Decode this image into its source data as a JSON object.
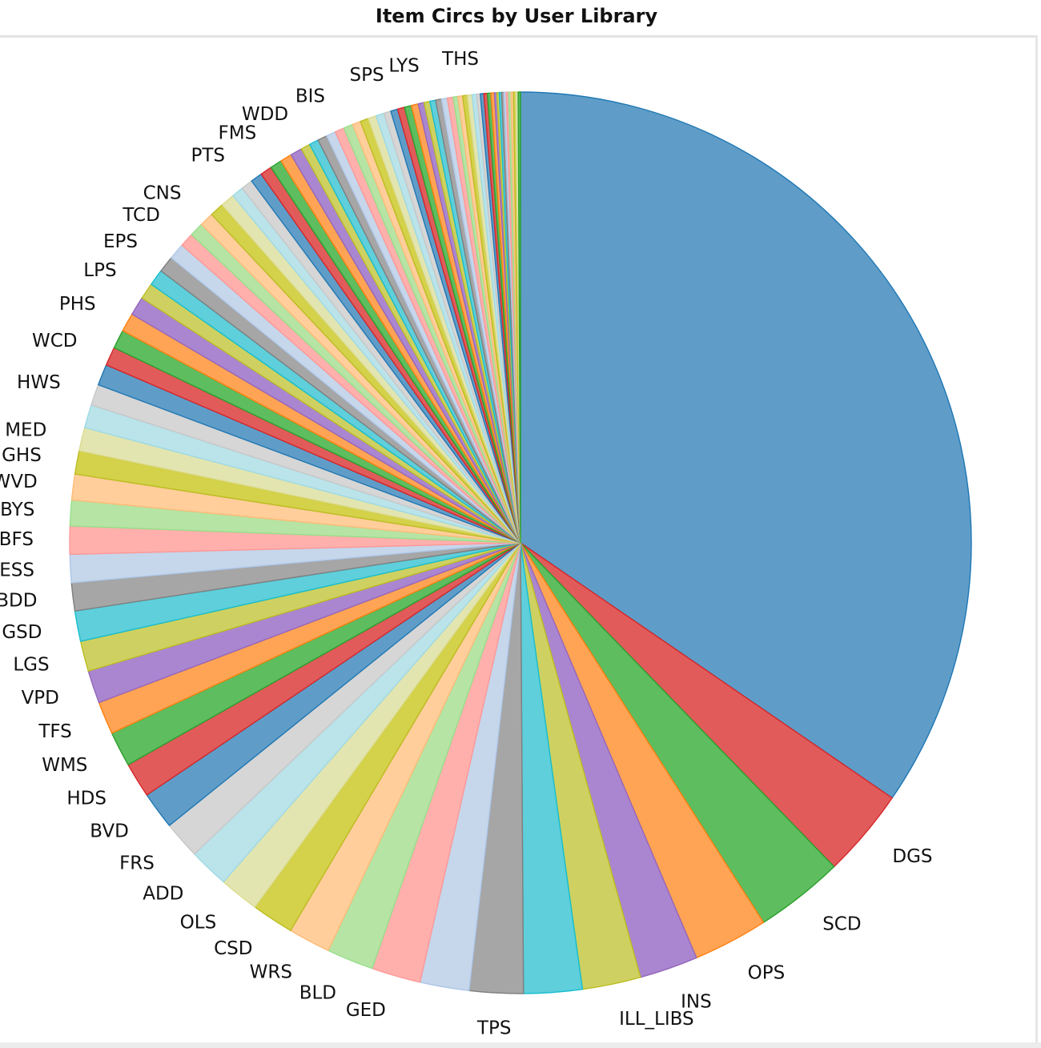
{
  "chart_data": {
    "type": "pie",
    "title": "Item Circs by User Library",
    "start_angle_deg": 90,
    "direction": "clockwise",
    "slices": [
      {
        "label": "",
        "value": 41.3,
        "color": "#5f9dc8",
        "edge": "#1f77b4"
      },
      {
        "label": "DGS",
        "value": 3.8,
        "color": "#e15b5b",
        "edge": "#d62728"
      },
      {
        "label": "SCD",
        "value": 3.8,
        "color": "#5dbd5f",
        "edge": "#2ca02c"
      },
      {
        "label": "OPS",
        "value": 3.2,
        "color": "#ffa454",
        "edge": "#ff7f0e"
      },
      {
        "label": "INS",
        "value": 2.5,
        "color": "#ab86d0",
        "edge": "#9467bd"
      },
      {
        "label": "ILL_LIBS",
        "value": 2.5,
        "color": "#ced161",
        "edge": "#bcbd22"
      },
      {
        "label": "",
        "value": 2.5,
        "color": "#5ecfdb",
        "edge": "#17becf"
      },
      {
        "label": "TPS",
        "value": 2.3,
        "color": "#a6a6a6",
        "edge": "#7f7f7f"
      },
      {
        "label": "",
        "value": 2.1,
        "color": "#c6d6eb",
        "edge": "#aec7e8"
      },
      {
        "label": "GED",
        "value": 2.1,
        "color": "#ffb0ad",
        "edge": "#ff9896"
      },
      {
        "label": "BLD",
        "value": 2.0,
        "color": "#b6e4a5",
        "edge": "#98df8a"
      },
      {
        "label": "WRS",
        "value": 1.8,
        "color": "#ffce9b",
        "edge": "#ffbb78"
      },
      {
        "label": "CSD",
        "value": 1.8,
        "color": "#d4d14a",
        "edge": "#bcbd22"
      },
      {
        "label": "OLS",
        "value": 1.7,
        "color": "#e3e5b0",
        "edge": "#dbdb8d"
      },
      {
        "label": "ADD",
        "value": 1.7,
        "color": "#bae3ea",
        "edge": "#9edae5"
      },
      {
        "label": "FRS",
        "value": 1.6,
        "color": "#d6d6d6",
        "edge": "#c7c7c7"
      },
      {
        "label": "BVD",
        "value": 1.6,
        "color": "#5f9dc8",
        "edge": "#1f77b4"
      },
      {
        "label": "HDS",
        "value": 1.5,
        "color": "#e15b5b",
        "edge": "#d62728"
      },
      {
        "label": "WMS",
        "value": 1.5,
        "color": "#5dbd5f",
        "edge": "#2ca02c"
      },
      {
        "label": "TFS",
        "value": 1.4,
        "color": "#ffa454",
        "edge": "#ff7f0e"
      },
      {
        "label": "VPD",
        "value": 1.4,
        "color": "#ab86d0",
        "edge": "#9467bd"
      },
      {
        "label": "LGS",
        "value": 1.3,
        "color": "#ced161",
        "edge": "#bcbd22"
      },
      {
        "label": "GSD",
        "value": 1.3,
        "color": "#5ecfdb",
        "edge": "#17becf"
      },
      {
        "label": "BDD",
        "value": 1.2,
        "color": "#a6a6a6",
        "edge": "#7f7f7f"
      },
      {
        "label": "ESS",
        "value": 1.2,
        "color": "#c6d6eb",
        "edge": "#aec7e8"
      },
      {
        "label": "BFS",
        "value": 1.2,
        "color": "#ffb0ad",
        "edge": "#ff9896"
      },
      {
        "label": "BYS",
        "value": 1.1,
        "color": "#b6e4a5",
        "edge": "#98df8a"
      },
      {
        "label": "WVD",
        "value": 1.1,
        "color": "#ffce9b",
        "edge": "#ffbb78"
      },
      {
        "label": "GHS",
        "value": 1.0,
        "color": "#d4d14a",
        "edge": "#bcbd22"
      },
      {
        "label": "MED",
        "value": 1.0,
        "color": "#e3e5b0",
        "edge": "#dbdb8d"
      },
      {
        "label": "",
        "value": 1.0,
        "color": "#bae3ea",
        "edge": "#9edae5"
      },
      {
        "label": "HWS",
        "value": 0.9,
        "color": "#d6d6d6",
        "edge": "#c7c7c7"
      },
      {
        "label": "",
        "value": 0.9,
        "color": "#5f9dc8",
        "edge": "#1f77b4"
      },
      {
        "label": "WCD",
        "value": 0.8,
        "color": "#e15b5b",
        "edge": "#d62728"
      },
      {
        "label": "",
        "value": 0.8,
        "color": "#5dbd5f",
        "edge": "#2ca02c"
      },
      {
        "label": "PHS",
        "value": 0.8,
        "color": "#ffa454",
        "edge": "#ff7f0e"
      },
      {
        "label": "",
        "value": 0.8,
        "color": "#ab86d0",
        "edge": "#9467bd"
      },
      {
        "label": "LPS",
        "value": 0.7,
        "color": "#ced161",
        "edge": "#bcbd22"
      },
      {
        "label": "",
        "value": 0.7,
        "color": "#5ecfdb",
        "edge": "#17becf"
      },
      {
        "label": "EPS",
        "value": 0.7,
        "color": "#a6a6a6",
        "edge": "#7f7f7f"
      },
      {
        "label": "",
        "value": 0.7,
        "color": "#c6d6eb",
        "edge": "#aec7e8"
      },
      {
        "label": "TCD",
        "value": 0.6,
        "color": "#ffb0ad",
        "edge": "#ff9896"
      },
      {
        "label": "",
        "value": 0.6,
        "color": "#b6e4a5",
        "edge": "#98df8a"
      },
      {
        "label": "CNS",
        "value": 0.6,
        "color": "#ffce9b",
        "edge": "#ffbb78"
      },
      {
        "label": "",
        "value": 0.6,
        "color": "#d4d14a",
        "edge": "#bcbd22"
      },
      {
        "label": "",
        "value": 0.6,
        "color": "#e3e5b0",
        "edge": "#dbdb8d"
      },
      {
        "label": "",
        "value": 0.5,
        "color": "#bae3ea",
        "edge": "#9edae5"
      },
      {
        "label": "PTS",
        "value": 0.5,
        "color": "#d6d6d6",
        "edge": "#c7c7c7"
      },
      {
        "label": "",
        "value": 0.5,
        "color": "#5f9dc8",
        "edge": "#1f77b4"
      },
      {
        "label": "",
        "value": 0.5,
        "color": "#e15b5b",
        "edge": "#d62728"
      },
      {
        "label": "FMS",
        "value": 0.5,
        "color": "#5dbd5f",
        "edge": "#2ca02c"
      },
      {
        "label": "",
        "value": 0.5,
        "color": "#ffa454",
        "edge": "#ff7f0e"
      },
      {
        "label": "",
        "value": 0.5,
        "color": "#ab86d0",
        "edge": "#9467bd"
      },
      {
        "label": "WDD",
        "value": 0.4,
        "color": "#ced161",
        "edge": "#bcbd22"
      },
      {
        "label": "",
        "value": 0.4,
        "color": "#5ecfdb",
        "edge": "#17becf"
      },
      {
        "label": "",
        "value": 0.4,
        "color": "#a6a6a6",
        "edge": "#7f7f7f"
      },
      {
        "label": "",
        "value": 0.4,
        "color": "#c6d6eb",
        "edge": "#aec7e8"
      },
      {
        "label": "BIS",
        "value": 0.4,
        "color": "#ffb0ad",
        "edge": "#ff9896"
      },
      {
        "label": "",
        "value": 0.4,
        "color": "#b6e4a5",
        "edge": "#98df8a"
      },
      {
        "label": "",
        "value": 0.35,
        "color": "#ffce9b",
        "edge": "#ffbb78"
      },
      {
        "label": "",
        "value": 0.35,
        "color": "#d4d14a",
        "edge": "#bcbd22"
      },
      {
        "label": "",
        "value": 0.35,
        "color": "#e3e5b0",
        "edge": "#dbdb8d"
      },
      {
        "label": "",
        "value": 0.35,
        "color": "#bae3ea",
        "edge": "#9edae5"
      },
      {
        "label": "",
        "value": 0.3,
        "color": "#d6d6d6",
        "edge": "#c7c7c7"
      },
      {
        "label": "SPS",
        "value": 0.3,
        "color": "#5f9dc8",
        "edge": "#1f77b4"
      },
      {
        "label": "",
        "value": 0.3,
        "color": "#e15b5b",
        "edge": "#d62728"
      },
      {
        "label": "",
        "value": 0.3,
        "color": "#5dbd5f",
        "edge": "#2ca02c"
      },
      {
        "label": "",
        "value": 0.3,
        "color": "#ffa454",
        "edge": "#ff7f0e"
      },
      {
        "label": "",
        "value": 0.25,
        "color": "#ab86d0",
        "edge": "#9467bd"
      },
      {
        "label": "LYS",
        "value": 0.25,
        "color": "#ced161",
        "edge": "#bcbd22"
      },
      {
        "label": "",
        "value": 0.25,
        "color": "#5ecfdb",
        "edge": "#17becf"
      },
      {
        "label": "",
        "value": 0.25,
        "color": "#a6a6a6",
        "edge": "#7f7f7f"
      },
      {
        "label": "",
        "value": 0.25,
        "color": "#c6d6eb",
        "edge": "#aec7e8"
      },
      {
        "label": "",
        "value": 0.25,
        "color": "#ffb0ad",
        "edge": "#ff9896"
      },
      {
        "label": "",
        "value": 0.2,
        "color": "#b6e4a5",
        "edge": "#98df8a"
      },
      {
        "label": "",
        "value": 0.2,
        "color": "#ffce9b",
        "edge": "#ffbb78"
      },
      {
        "label": "THS",
        "value": 0.2,
        "color": "#d4d14a",
        "edge": "#bcbd22"
      },
      {
        "label": "",
        "value": 0.2,
        "color": "#e3e5b0",
        "edge": "#dbdb8d"
      },
      {
        "label": "",
        "value": 0.2,
        "color": "#bae3ea",
        "edge": "#9edae5"
      },
      {
        "label": "",
        "value": 0.15,
        "color": "#d6d6d6",
        "edge": "#c7c7c7"
      },
      {
        "label": "",
        "value": 0.15,
        "color": "#5f9dc8",
        "edge": "#1f77b4"
      },
      {
        "label": "",
        "value": 0.15,
        "color": "#e15b5b",
        "edge": "#d62728"
      },
      {
        "label": "",
        "value": 0.15,
        "color": "#5dbd5f",
        "edge": "#2ca02c"
      },
      {
        "label": "",
        "value": 0.15,
        "color": "#ffa454",
        "edge": "#ff7f0e"
      },
      {
        "label": "",
        "value": 0.1,
        "color": "#ab86d0",
        "edge": "#9467bd"
      },
      {
        "label": "",
        "value": 0.1,
        "color": "#ced161",
        "edge": "#bcbd22"
      },
      {
        "label": "",
        "value": 0.1,
        "color": "#5ecfdb",
        "edge": "#17becf"
      },
      {
        "label": "",
        "value": 0.1,
        "color": "#a6a6a6",
        "edge": "#7f7f7f"
      },
      {
        "label": "",
        "value": 0.1,
        "color": "#c6d6eb",
        "edge": "#aec7e8"
      },
      {
        "label": "",
        "value": 0.1,
        "color": "#ffb0ad",
        "edge": "#ff9896"
      },
      {
        "label": "",
        "value": 0.1,
        "color": "#b6e4a5",
        "edge": "#98df8a"
      },
      {
        "label": "",
        "value": 0.1,
        "color": "#ffce9b",
        "edge": "#ffbb78"
      },
      {
        "label": "",
        "value": 0.1,
        "color": "#d4d14a",
        "edge": "#bcbd22"
      },
      {
        "label": "",
        "value": 0.1,
        "color": "#e3e5b0",
        "edge": "#dbdb8d"
      },
      {
        "label": "",
        "value": 0.1,
        "color": "#5dbd5f",
        "edge": "#2ca02c"
      }
    ]
  }
}
